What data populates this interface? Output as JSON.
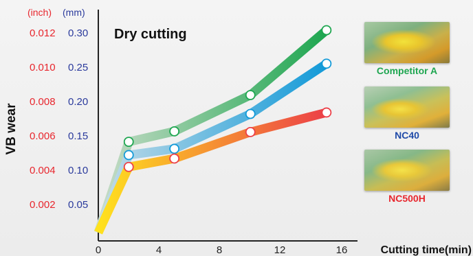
{
  "chart_data": {
    "type": "line",
    "title": "Dry cutting",
    "xlabel": "Cutting time(min)",
    "ylabel": "VB wear",
    "y_units": [
      "(inch)",
      "(mm)"
    ],
    "x_ticks": [
      "0",
      "4",
      "8",
      "12",
      "16"
    ],
    "y_ticks_mm": [
      "0.05",
      "0.10",
      "0.15",
      "0.20",
      "0.25",
      "0.30"
    ],
    "y_ticks_inch": [
      "0.002",
      "0.004",
      "0.006",
      "0.008",
      "0.010",
      "0.012"
    ],
    "xlim": [
      0,
      16
    ],
    "ylim": [
      0,
      0.32
    ],
    "series": [
      {
        "name": "Competitor A",
        "color": "#1ea650",
        "light_color": "#c8dcc8",
        "x": [
          0,
          2,
          5,
          10,
          15
        ],
        "y": [
          0.012,
          0.142,
          0.157,
          0.209,
          0.302
        ]
      },
      {
        "name": "NC40",
        "color": "#139ad8",
        "light_color": "#c4dce8",
        "x": [
          0,
          2,
          5,
          10,
          15
        ],
        "y": [
          0.012,
          0.123,
          0.132,
          0.182,
          0.254
        ]
      },
      {
        "name": "NC500H",
        "color": "#ec4048",
        "light_color": "#ffe21e",
        "x": [
          0,
          2,
          5,
          10,
          15
        ],
        "y": [
          0.012,
          0.106,
          0.118,
          0.156,
          0.184
        ]
      }
    ],
    "grid": false,
    "legend": "right"
  },
  "colors": {
    "inch_axis": "#e8262d",
    "mm_axis": "#2a3a9c",
    "title": "#111111"
  }
}
